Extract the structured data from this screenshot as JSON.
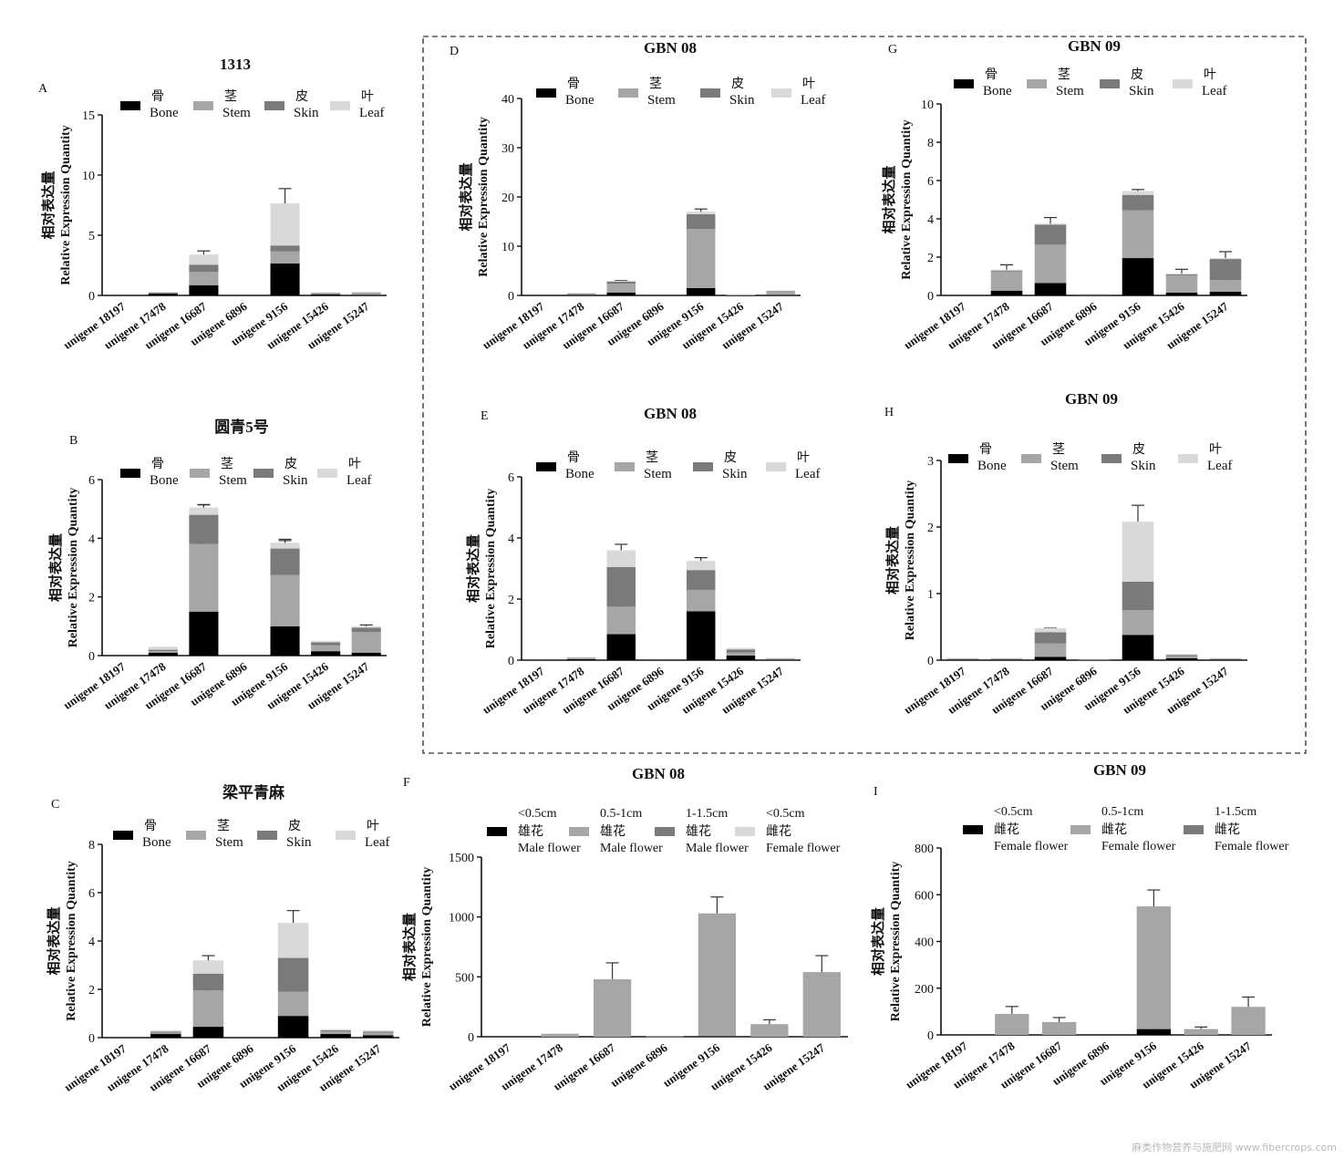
{
  "colors": {
    "bone": "#000000",
    "stem": "#a6a6a6",
    "skin": "#7a7a7a",
    "leaf": "#d9d9d9",
    "male_small": "#000000",
    "male_mid": "#a6a6a6",
    "male_large": "#7a7a7a",
    "female_small": "#d9d9d9"
  },
  "dashed_box": true,
  "watermark": "麻类作物营养与施肥网 www.fibercrops.com",
  "chart_data": [
    {
      "panel": "A",
      "title": "1313",
      "type": "bar",
      "stacked": true,
      "categories": [
        "unigene 18197",
        "unigene 17478",
        "unigene 16687",
        "unigene 6896",
        "unigene 9156",
        "unigene 15426",
        "unigene 15247"
      ],
      "ylabel_cn": "相对表达量",
      "ylabel": "Relative Expression Quantity",
      "ylim": [
        0,
        15
      ],
      "yticks": [
        0,
        5,
        10,
        15
      ],
      "legend_position": "top",
      "series": [
        {
          "name_cn": "骨",
          "name": "Bone",
          "color": "#000000",
          "values": [
            0,
            0.15,
            0.85,
            0,
            2.65,
            0.1,
            0.05
          ]
        },
        {
          "name_cn": "茎",
          "name": "Stem",
          "color": "#a6a6a6",
          "values": [
            0,
            0.05,
            1.1,
            0,
            1.0,
            0.05,
            0.1
          ]
        },
        {
          "name_cn": "皮",
          "name": "Skin",
          "color": "#7a7a7a",
          "values": [
            0,
            0.05,
            0.6,
            0,
            0.5,
            0.05,
            0.05
          ]
        },
        {
          "name_cn": "叶",
          "name": "Leaf",
          "color": "#d9d9d9",
          "values": [
            0,
            0.05,
            0.85,
            0,
            3.5,
            0.05,
            0.1
          ]
        }
      ]
    },
    {
      "panel": "B",
      "title": "圆青5号",
      "type": "bar",
      "stacked": true,
      "categories": [
        "unigene 18197",
        "unigene 17478",
        "unigene 16687",
        "unigene 6896",
        "unigene 9156",
        "unigene 15426",
        "unigene 15247"
      ],
      "ylabel_cn": "相对表达量",
      "ylabel": "Relative Expression Quantity",
      "ylim": [
        0,
        6
      ],
      "yticks": [
        0,
        2,
        4,
        6
      ],
      "legend_position": "top",
      "series": [
        {
          "name_cn": "骨",
          "name": "Bone",
          "color": "#000000",
          "values": [
            0,
            0.1,
            1.5,
            0,
            1.0,
            0.15,
            0.1
          ]
        },
        {
          "name_cn": "茎",
          "name": "Stem",
          "color": "#a6a6a6",
          "values": [
            0,
            0.05,
            2.3,
            0,
            1.75,
            0.2,
            0.7
          ]
        },
        {
          "name_cn": "皮",
          "name": "Skin",
          "color": "#7a7a7a",
          "values": [
            0,
            0.05,
            1.0,
            0,
            0.9,
            0.1,
            0.15
          ]
        },
        {
          "name_cn": "叶",
          "name": "Leaf",
          "color": "#d9d9d9",
          "values": [
            0,
            0.1,
            0.25,
            0,
            0.2,
            0.05,
            0.05
          ]
        }
      ]
    },
    {
      "panel": "C",
      "title": "梁平青麻",
      "type": "bar",
      "stacked": true,
      "categories": [
        "unigene 18197",
        "unigene 17478",
        "unigene 16687",
        "unigene 6896",
        "unigene 9156",
        "unigene 15426",
        "unigene 15247"
      ],
      "ylabel_cn": "相对表达量",
      "ylabel": "Relative Expression Quantity",
      "ylim": [
        0,
        8
      ],
      "yticks": [
        0,
        2,
        4,
        6,
        8
      ],
      "legend_position": "top",
      "series": [
        {
          "name_cn": "骨",
          "name": "Bone",
          "color": "#000000",
          "values": [
            0,
            0.15,
            0.45,
            0,
            0.9,
            0.15,
            0.1
          ]
        },
        {
          "name_cn": "茎",
          "name": "Stem",
          "color": "#a6a6a6",
          "values": [
            0,
            0.05,
            1.5,
            0,
            1.0,
            0.1,
            0.1
          ]
        },
        {
          "name_cn": "皮",
          "name": "Skin",
          "color": "#7a7a7a",
          "values": [
            0,
            0.05,
            0.7,
            0,
            1.4,
            0.05,
            0.05
          ]
        },
        {
          "name_cn": "叶",
          "name": "Leaf",
          "color": "#d9d9d9",
          "values": [
            0,
            0.05,
            0.55,
            0,
            1.45,
            0.05,
            0.05
          ]
        }
      ]
    },
    {
      "panel": "D",
      "title": "GBN 08",
      "type": "bar",
      "stacked": true,
      "categories": [
        "unigene 18197",
        "unigene 17478",
        "unigene 16687",
        "unigene 6896",
        "unigene 9156",
        "unigene 15426",
        "unigene 15247"
      ],
      "ylabel_cn": "相对表达量",
      "ylabel": "Relative Expression Quantity",
      "ylim": [
        0,
        40
      ],
      "yticks": [
        0,
        10,
        20,
        30,
        40
      ],
      "legend_position": "top",
      "series": [
        {
          "name_cn": "骨",
          "name": "Bone",
          "color": "#000000",
          "values": [
            0,
            0.1,
            0.6,
            0,
            1.5,
            0.05,
            0.1
          ]
        },
        {
          "name_cn": "茎",
          "name": "Stem",
          "color": "#a6a6a6",
          "values": [
            0,
            0.2,
            1.8,
            0,
            12,
            0.1,
            0.6
          ]
        },
        {
          "name_cn": "皮",
          "name": "Skin",
          "color": "#7a7a7a",
          "values": [
            0,
            0.1,
            0.4,
            0,
            3,
            0.05,
            0.2
          ]
        },
        {
          "name_cn": "叶",
          "name": "Leaf",
          "color": "#d9d9d9",
          "values": [
            0,
            0.1,
            0.2,
            0,
            0.5,
            0.05,
            0.1
          ]
        }
      ]
    },
    {
      "panel": "E",
      "title": "GBN 08",
      "type": "bar",
      "stacked": true,
      "categories": [
        "unigene 18197",
        "unigene 17478",
        "unigene 16687",
        "unigene 6896",
        "unigene 9156",
        "unigene 15426",
        "unigene 15247"
      ],
      "ylabel_cn": "相对表达量",
      "ylabel": "Relative Expression Quantity",
      "ylim": [
        0,
        6
      ],
      "yticks": [
        0,
        2,
        4,
        6
      ],
      "legend_position": "top",
      "series": [
        {
          "name_cn": "骨",
          "name": "Bone",
          "color": "#000000",
          "values": [
            0,
            0.03,
            0.85,
            0,
            1.6,
            0.15,
            0.02
          ]
        },
        {
          "name_cn": "茎",
          "name": "Stem",
          "color": "#a6a6a6",
          "values": [
            0,
            0.04,
            0.9,
            0,
            0.7,
            0.1,
            0.02
          ]
        },
        {
          "name_cn": "皮",
          "name": "Skin",
          "color": "#7a7a7a",
          "values": [
            0,
            0.02,
            1.3,
            0,
            0.65,
            0.1,
            0.02
          ]
        },
        {
          "name_cn": "叶",
          "name": "Leaf",
          "color": "#d9d9d9",
          "values": [
            0,
            0.01,
            0.55,
            0,
            0.3,
            0.05,
            0.01
          ]
        }
      ]
    },
    {
      "panel": "F",
      "title": "GBN 08",
      "type": "bar",
      "stacked": true,
      "categories": [
        "unigene 18197",
        "unigene 17478",
        "unigene 16687",
        "unigene 6896",
        "unigene 9156",
        "unigene 15426",
        "unigene 15247"
      ],
      "ylabel_cn": "相对表达量",
      "ylabel": "Relative Expression Quantity",
      "ylim": [
        0,
        1500
      ],
      "yticks": [
        0,
        500,
        1000,
        1500
      ],
      "legend_position": "top",
      "series": [
        {
          "name_cn": "雄花",
          "size": "<0.5cm",
          "name": "Male flower",
          "color": "#000000",
          "values": [
            0,
            0,
            0,
            0,
            5,
            0,
            0
          ]
        },
        {
          "name_cn": "雄花",
          "size": "0.5-1cm",
          "name": "Male flower",
          "color": "#a6a6a6",
          "values": [
            0,
            25,
            480,
            5,
            1025,
            105,
            540
          ]
        },
        {
          "name_cn": "雄花",
          "size": "1-1.5cm",
          "name": "Male flower",
          "color": "#7a7a7a",
          "values": [
            0,
            0,
            0,
            0,
            0,
            0,
            0
          ]
        },
        {
          "name_cn": "雌花",
          "size": "<0.5cm",
          "name": "Female flower",
          "color": "#d9d9d9",
          "values": [
            0,
            0,
            0,
            0,
            0,
            0,
            0
          ]
        }
      ]
    },
    {
      "panel": "G",
      "title": "GBN 09",
      "type": "bar",
      "stacked": true,
      "categories": [
        "unigene 18197",
        "unigene 17478",
        "unigene 16687",
        "unigene 6896",
        "unigene 9156",
        "unigene 15426",
        "unigene 15247"
      ],
      "ylabel_cn": "相对表达量",
      "ylabel": "Relative Expression Quantity",
      "ylim": [
        0,
        10
      ],
      "yticks": [
        0,
        2,
        4,
        6,
        8,
        10
      ],
      "legend_position": "top",
      "series": [
        {
          "name_cn": "骨",
          "name": "Bone",
          "color": "#000000",
          "values": [
            0,
            0.25,
            0.65,
            0.02,
            1.95,
            0.15,
            0.2
          ]
        },
        {
          "name_cn": "茎",
          "name": "Stem",
          "color": "#a6a6a6",
          "values": [
            0,
            1.0,
            2.0,
            0.03,
            2.5,
            0.9,
            0.6
          ]
        },
        {
          "name_cn": "皮",
          "name": "Skin",
          "color": "#7a7a7a",
          "values": [
            0,
            0.05,
            1.05,
            0.01,
            0.8,
            0.05,
            1.1
          ]
        },
        {
          "name_cn": "叶",
          "name": "Leaf",
          "color": "#d9d9d9",
          "values": [
            0,
            0.05,
            0.05,
            0,
            0.2,
            0.05,
            0.05
          ]
        }
      ]
    },
    {
      "panel": "H",
      "title": "GBN 09",
      "type": "bar",
      "stacked": true,
      "categories": [
        "unigene 18197",
        "unigene 17478",
        "unigene 16687",
        "unigene 6896",
        "unigene 9156",
        "unigene 15426",
        "unigene 15247"
      ],
      "ylabel_cn": "相对表达量",
      "ylabel": "Relative Expression Quantity",
      "ylim": [
        0,
        3
      ],
      "yticks": [
        0,
        1,
        2,
        3
      ],
      "legend_position": "top",
      "series": [
        {
          "name_cn": "骨",
          "name": "Bone",
          "color": "#000000",
          "values": [
            0.01,
            0.01,
            0.05,
            0.005,
            0.38,
            0.03,
            0.01
          ]
        },
        {
          "name_cn": "茎",
          "name": "Stem",
          "color": "#a6a6a6",
          "values": [
            0.01,
            0.01,
            0.2,
            0.005,
            0.37,
            0.03,
            0.01
          ]
        },
        {
          "name_cn": "皮",
          "name": "Skin",
          "color": "#7a7a7a",
          "values": [
            0.005,
            0.005,
            0.17,
            0.005,
            0.43,
            0.02,
            0.005
          ]
        },
        {
          "name_cn": "叶",
          "name": "Leaf",
          "color": "#d9d9d9",
          "values": [
            0.005,
            0.005,
            0.06,
            0,
            0.9,
            0.01,
            0.005
          ]
        }
      ]
    },
    {
      "panel": "I",
      "title": "GBN 09",
      "type": "bar",
      "stacked": true,
      "categories": [
        "unigene 18197",
        "unigene 17478",
        "unigene 16687",
        "unigene 6896",
        "unigene 9156",
        "unigene 15426",
        "unigene 15247"
      ],
      "ylabel_cn": "相对表达量",
      "ylabel": "Relative Expression Quantity",
      "ylim": [
        0,
        800
      ],
      "yticks": [
        0,
        200,
        400,
        600,
        800
      ],
      "legend_position": "top",
      "series": [
        {
          "name_cn": "雌花",
          "size": "<0.5cm",
          "name": "Female flower",
          "color": "#000000",
          "values": [
            0,
            0,
            0,
            0,
            25,
            0,
            0
          ]
        },
        {
          "name_cn": "雌花",
          "size": "0.5-1cm",
          "name": "Female flower",
          "color": "#a6a6a6",
          "values": [
            0,
            90,
            55,
            0,
            525,
            25,
            120
          ]
        },
        {
          "name_cn": "雌花",
          "size": "1-1.5cm",
          "name": "Female flower",
          "color": "#7a7a7a",
          "values": [
            0,
            0,
            0,
            0,
            0,
            0,
            0
          ]
        }
      ]
    }
  ]
}
